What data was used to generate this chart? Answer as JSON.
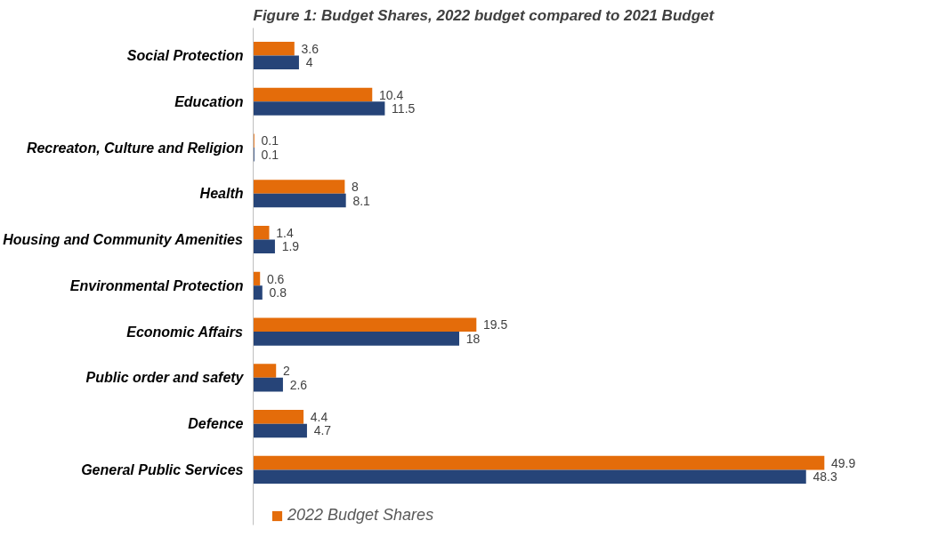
{
  "chart_data": {
    "type": "bar",
    "orientation": "horizontal",
    "title": "Figure 1:  Budget Shares, 2022 budget compared to 2021 Budget",
    "categories": [
      "Social Protection",
      "Education",
      "Recreaton, Culture and Religion",
      "Health",
      "Housing and Community Amenities",
      "Environmental Protection",
      "Economic Affairs",
      "Public order and safety",
      "Defence",
      "General Public Services"
    ],
    "series": [
      {
        "name": "2022 Budget Shares",
        "color": "#e46c0a",
        "values": [
          3.6,
          10.4,
          0.1,
          8,
          1.4,
          0.6,
          19.5,
          2,
          4.4,
          49.9
        ]
      },
      {
        "color": "#264478",
        "values": [
          4,
          11.5,
          0.1,
          8.1,
          1.9,
          0.8,
          18,
          2.6,
          4.7,
          48.3
        ]
      }
    ],
    "data_labels": true,
    "grid": false,
    "legend": "bottom"
  }
}
